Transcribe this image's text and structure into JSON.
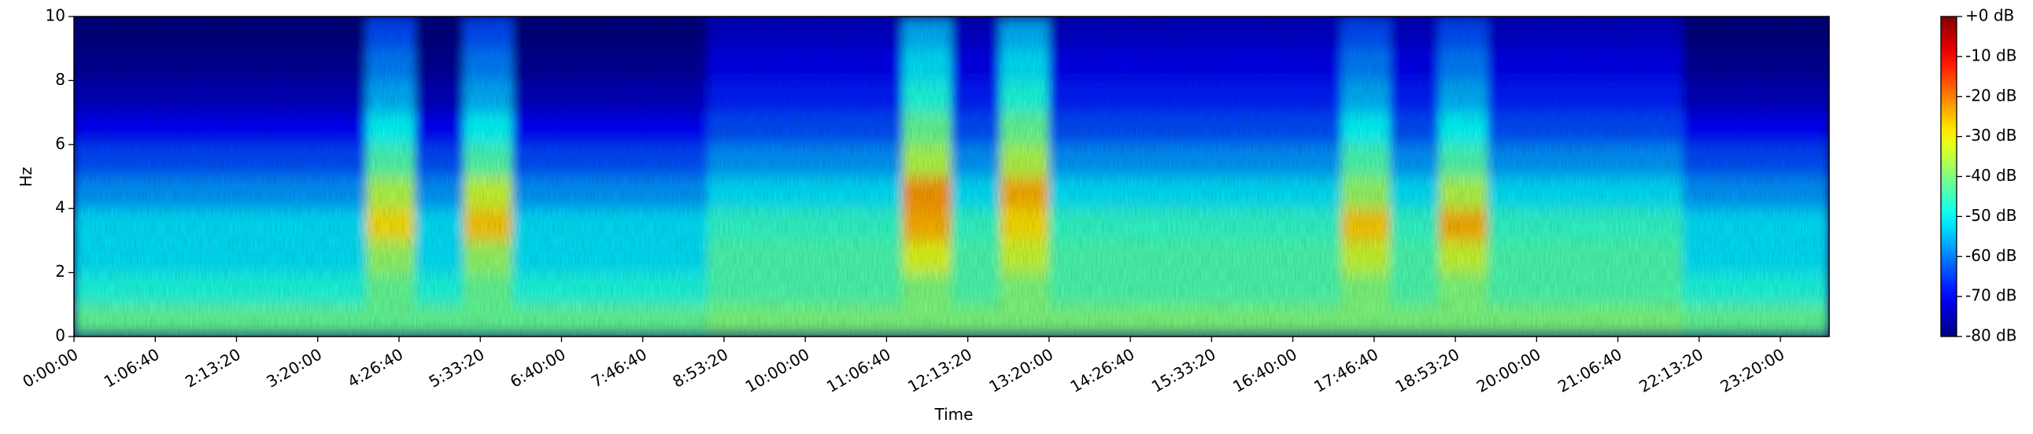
{
  "chart_data": {
    "type": "spectrogram",
    "xlabel": "Time",
    "ylabel": "Hz",
    "colormap": "jet",
    "xlim": [
      0,
      86400
    ],
    "xticks": [
      {
        "value": 0,
        "label": "0:00:00"
      },
      {
        "value": 4000,
        "label": "1:06:40"
      },
      {
        "value": 8000,
        "label": "2:13:20"
      },
      {
        "value": 12000,
        "label": "3:20:00"
      },
      {
        "value": 16000,
        "label": "4:26:40"
      },
      {
        "value": 20000,
        "label": "5:33:20"
      },
      {
        "value": 24000,
        "label": "6:40:00"
      },
      {
        "value": 28000,
        "label": "7:46:40"
      },
      {
        "value": 32000,
        "label": "8:53:20"
      },
      {
        "value": 36000,
        "label": "10:00:00"
      },
      {
        "value": 40000,
        "label": "11:06:40"
      },
      {
        "value": 44000,
        "label": "12:13:20"
      },
      {
        "value": 48000,
        "label": "13:20:00"
      },
      {
        "value": 52000,
        "label": "14:26:40"
      },
      {
        "value": 56000,
        "label": "15:33:20"
      },
      {
        "value": 60000,
        "label": "16:40:00"
      },
      {
        "value": 64000,
        "label": "17:46:40"
      },
      {
        "value": 68000,
        "label": "18:53:20"
      },
      {
        "value": 72000,
        "label": "20:00:00"
      },
      {
        "value": 76000,
        "label": "21:06:40"
      },
      {
        "value": 80000,
        "label": "22:13:20"
      },
      {
        "value": 84000,
        "label": "23:20:00"
      }
    ],
    "ylim": [
      0,
      10
    ],
    "yticks": [
      0,
      2,
      4,
      6,
      8,
      10
    ],
    "clim": [
      -80,
      0
    ],
    "cticks": [
      {
        "value": 0,
        "label": "+0 dB"
      },
      {
        "value": -10,
        "label": "-10 dB"
      },
      {
        "value": -20,
        "label": "-20 dB"
      },
      {
        "value": -30,
        "label": "-30 dB"
      },
      {
        "value": -40,
        "label": "-40 dB"
      },
      {
        "value": -50,
        "label": "-50 dB"
      },
      {
        "value": -60,
        "label": "-60 dB"
      },
      {
        "value": -70,
        "label": "-70 dB"
      },
      {
        "value": -80,
        "label": "-80 dB"
      }
    ],
    "z": [
      [
        -42,
        -42,
        -42,
        -42,
        -42,
        -42,
        -42,
        -42,
        -42,
        -42,
        -42,
        -42,
        -42,
        -40,
        -40,
        -40,
        -40,
        -40,
        -40,
        -40,
        -40,
        -40,
        -40,
        -40,
        -40,
        -40,
        -40,
        -40,
        -40,
        -40,
        -40,
        -40,
        -40,
        -42,
        -42,
        -42
      ],
      [
        -48,
        -48,
        -48,
        -48,
        -48,
        -48,
        -42,
        -48,
        -42,
        -48,
        -48,
        -48,
        -48,
        -44,
        -44,
        -44,
        -44,
        -40,
        -44,
        -40,
        -44,
        -44,
        -44,
        -44,
        -44,
        -44,
        -40,
        -44,
        -40,
        -44,
        -44,
        -44,
        -44,
        -48,
        -48,
        -48
      ],
      [
        -52,
        -52,
        -52,
        -52,
        -52,
        -52,
        -38,
        -52,
        -38,
        -52,
        -52,
        -52,
        -52,
        -44,
        -44,
        -44,
        -44,
        -32,
        -44,
        -34,
        -44,
        -44,
        -44,
        -44,
        -44,
        -44,
        -34,
        -44,
        -34,
        -44,
        -44,
        -44,
        -44,
        -52,
        -52,
        -52
      ],
      [
        -52,
        -52,
        -52,
        -52,
        -52,
        -52,
        -28,
        -52,
        -26,
        -52,
        -52,
        -52,
        -52,
        -46,
        -46,
        -46,
        -46,
        -24,
        -46,
        -28,
        -46,
        -46,
        -46,
        -46,
        -46,
        -46,
        -26,
        -46,
        -24,
        -46,
        -46,
        -46,
        -46,
        -52,
        -52,
        -52
      ],
      [
        -58,
        -58,
        -58,
        -58,
        -58,
        -58,
        -36,
        -58,
        -34,
        -58,
        -58,
        -58,
        -58,
        -52,
        -52,
        -52,
        -52,
        -22,
        -52,
        -24,
        -52,
        -52,
        -52,
        -52,
        -52,
        -52,
        -38,
        -52,
        -36,
        -52,
        -52,
        -52,
        -52,
        -58,
        -58,
        -58
      ],
      [
        -64,
        -64,
        -64,
        -64,
        -64,
        -64,
        -44,
        -64,
        -44,
        -64,
        -64,
        -64,
        -64,
        -58,
        -58,
        -58,
        -58,
        -36,
        -58,
        -36,
        -58,
        -58,
        -58,
        -58,
        -58,
        -58,
        -44,
        -58,
        -44,
        -58,
        -58,
        -58,
        -58,
        -64,
        -64,
        -64
      ],
      [
        -70,
        -70,
        -70,
        -70,
        -70,
        -70,
        -50,
        -70,
        -50,
        -70,
        -70,
        -70,
        -70,
        -64,
        -64,
        -64,
        -64,
        -42,
        -64,
        -42,
        -64,
        -64,
        -64,
        -64,
        -64,
        -64,
        -50,
        -64,
        -50,
        -64,
        -64,
        -64,
        -64,
        -70,
        -70,
        -70
      ],
      [
        -75,
        -75,
        -75,
        -75,
        -75,
        -75,
        -56,
        -75,
        -56,
        -75,
        -75,
        -75,
        -75,
        -68,
        -68,
        -68,
        -68,
        -48,
        -68,
        -48,
        -68,
        -68,
        -68,
        -68,
        -68,
        -68,
        -56,
        -68,
        -56,
        -68,
        -68,
        -68,
        -68,
        -75,
        -75,
        -75
      ],
      [
        -78,
        -78,
        -78,
        -78,
        -78,
        -78,
        -60,
        -78,
        -60,
        -78,
        -78,
        -78,
        -78,
        -71,
        -71,
        -71,
        -71,
        -52,
        -71,
        -52,
        -71,
        -71,
        -71,
        -71,
        -71,
        -71,
        -60,
        -71,
        -60,
        -71,
        -71,
        -71,
        -71,
        -78,
        -78,
        -78
      ],
      [
        -80,
        -80,
        -80,
        -80,
        -80,
        -80,
        -64,
        -80,
        -64,
        -80,
        -80,
        -80,
        -80,
        -74,
        -74,
        -74,
        -74,
        -56,
        -74,
        -56,
        -74,
        -74,
        -74,
        -74,
        -74,
        -74,
        -64,
        -74,
        -64,
        -74,
        -74,
        -74,
        -74,
        -80,
        -80,
        -80
      ]
    ]
  }
}
